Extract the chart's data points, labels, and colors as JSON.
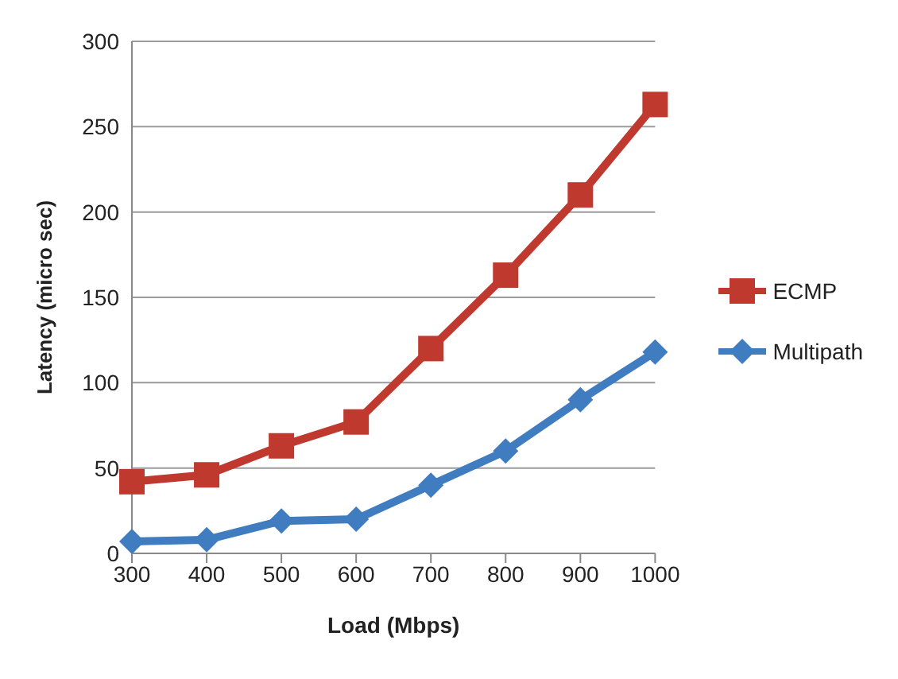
{
  "chart_data": {
    "type": "line",
    "xlabel": "Load (Mbps)",
    "ylabel": "Latency (micro sec)",
    "categories": [
      "300",
      "400",
      "500",
      "600",
      "700",
      "800",
      "900",
      "1000"
    ],
    "series": [
      {
        "name": "ECMP",
        "color": "#c0392f",
        "marker": "square",
        "values": [
          42,
          46,
          63,
          77,
          120,
          163,
          210,
          263
        ]
      },
      {
        "name": "Multipath",
        "color": "#3f7cc0",
        "marker": "diamond",
        "values": [
          7,
          8,
          19,
          20,
          40,
          60,
          90,
          118
        ]
      }
    ],
    "ylim": [
      0,
      300
    ],
    "yticks": [
      0,
      50,
      100,
      150,
      200,
      250,
      300
    ],
    "grid": "y",
    "legend": "right",
    "line_style": "solid"
  }
}
